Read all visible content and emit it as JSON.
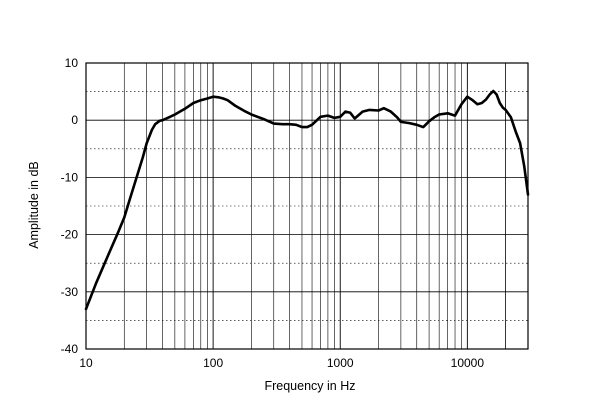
{
  "chart_data": {
    "type": "line",
    "title": "",
    "xlabel": "Frequency in Hz",
    "ylabel": "Amplitude in dB",
    "x_scale": "log",
    "xlim": [
      10,
      30000
    ],
    "ylim": [
      -40,
      10
    ],
    "grid": true,
    "x_tick_labels": [
      "10",
      "100",
      "1000",
      "10000"
    ],
    "x_tick_values": [
      10,
      100,
      1000,
      10000
    ],
    "y_tick_labels": [
      "10",
      "0",
      "-10",
      "-20",
      "-30",
      "-40"
    ],
    "y_tick_values": [
      10,
      0,
      -10,
      -20,
      -30,
      -40
    ],
    "line_color": "#000000",
    "series": [
      {
        "x": [
          10,
          12,
          15,
          18,
          20,
          22,
          25,
          28,
          30,
          33,
          35,
          38,
          40,
          45,
          50,
          60,
          70,
          80,
          90,
          100,
          110,
          120,
          130,
          150,
          180,
          200,
          250,
          300,
          350,
          400,
          450,
          500,
          550,
          600,
          700,
          800,
          900,
          1000,
          1100,
          1200,
          1300,
          1500,
          1700,
          2000,
          2200,
          2500,
          2800,
          3000,
          3500,
          4000,
          4500,
          5000,
          5500,
          6000,
          7000,
          8000,
          9000,
          10000,
          11000,
          12000,
          13000,
          14000,
          15000,
          16000,
          17000,
          18000,
          19000,
          20000,
          22000,
          24000,
          26000,
          28000,
          30000
        ],
        "y": [
          -33,
          -28.5,
          -23.5,
          -19.5,
          -17,
          -14,
          -10,
          -6.5,
          -4,
          -1.7,
          -0.7,
          -0.1,
          0,
          0.5,
          1,
          2,
          3,
          3.5,
          3.8,
          4.1,
          4,
          3.8,
          3.5,
          2.5,
          1.5,
          1,
          0.2,
          -0.6,
          -0.7,
          -0.7,
          -0.8,
          -1.2,
          -1.2,
          -0.8,
          0.6,
          0.8,
          0.4,
          0.6,
          1.5,
          1.3,
          0.3,
          1.5,
          1.8,
          1.7,
          2.1,
          1.5,
          0.5,
          -0.3,
          -0.5,
          -0.8,
          -1.2,
          -0.2,
          0.5,
          1,
          1.2,
          0.8,
          2.8,
          4.1,
          3.5,
          2.8,
          3,
          3.6,
          4.5,
          5.1,
          4.5,
          3,
          2.2,
          1.8,
          0.5,
          -2,
          -4,
          -8,
          -13
        ]
      }
    ]
  }
}
